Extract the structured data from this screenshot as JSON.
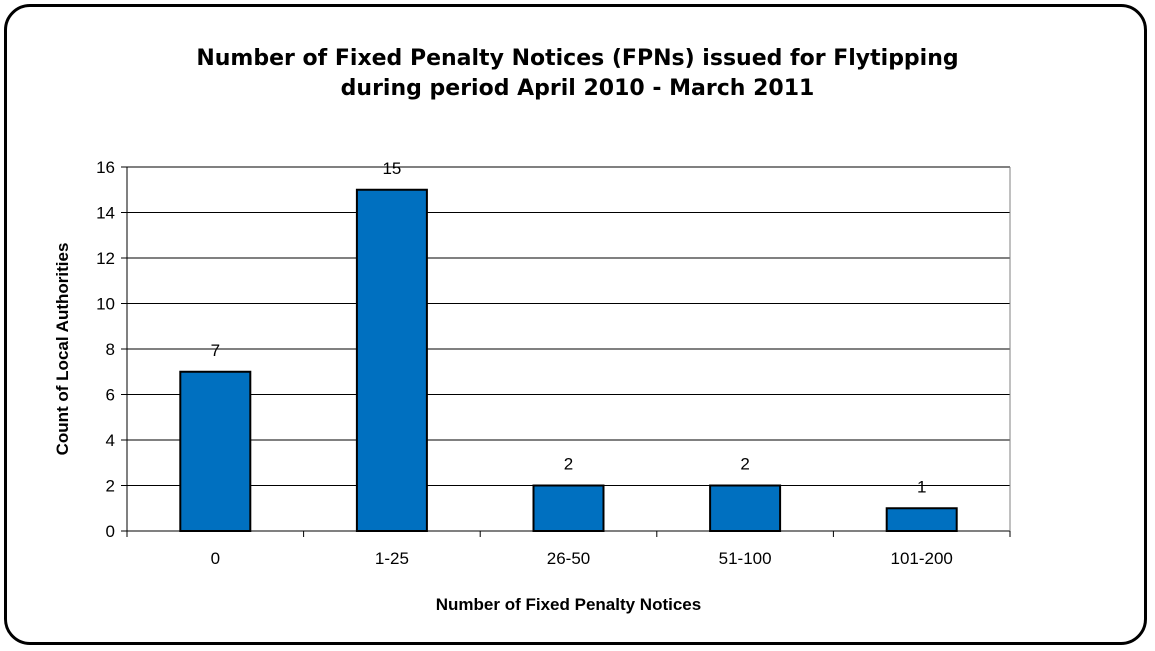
{
  "chart_data": {
    "type": "bar",
    "title_lines": [
      "Number of Fixed Penalty Notices (FPNs) issued for Flytipping",
      "during period April 2010 - March 2011"
    ],
    "categories": [
      "0",
      "1-25",
      "26-50",
      "51-100",
      "101-200"
    ],
    "values": [
      7,
      15,
      2,
      2,
      1
    ],
    "data_labels": [
      "7",
      "15",
      "2",
      "2",
      "1"
    ],
    "xlabel": "Number of Fixed Penalty Notices",
    "ylabel": "Count of Local Authorities",
    "ylim": [
      0,
      16
    ],
    "yticks": [
      0,
      2,
      4,
      6,
      8,
      10,
      12,
      14,
      16
    ],
    "grid": true,
    "legend": "none",
    "colors": {
      "bar": "#0070C0",
      "bar_border": "#000000",
      "grid": "#000000"
    }
  }
}
